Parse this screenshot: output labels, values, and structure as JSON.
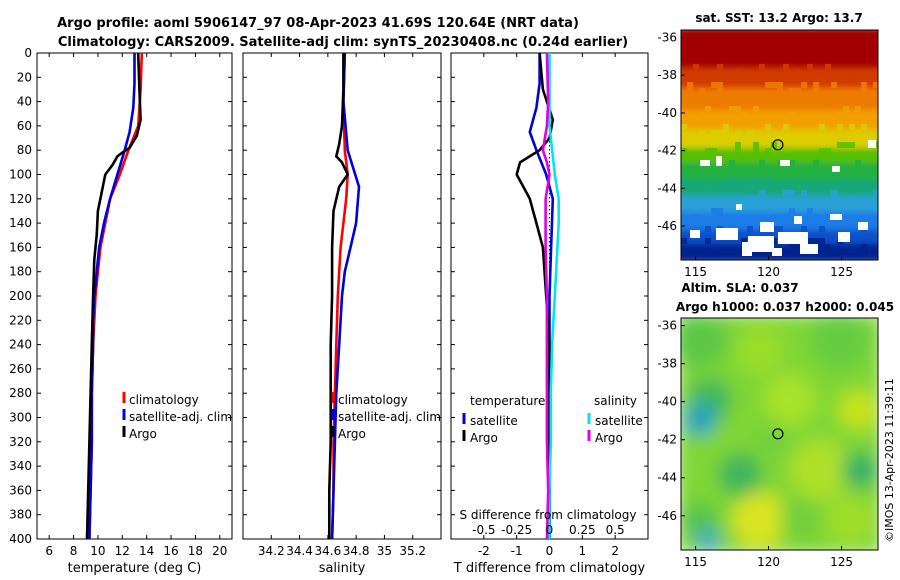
{
  "title": {
    "line1": "Argo profile: aoml 5906147_97 08-Apr-2023 41.69S 120.64E (NRT data)",
    "line2": "Climatology: CARS2009. Satellite-adj clim: synTS_20230408.nc (0.24d earlier)"
  },
  "watermark": "©IMOS 13-Apr-2023 11:39:11",
  "colors": {
    "climatology": "#ff0000",
    "satellite": "#0000dd",
    "argo": "#000000",
    "salinity_satellite": "#00e5ee",
    "salinity_diff": "#e000e0"
  },
  "chart_data": [
    {
      "type": "line",
      "name": "temperature-profile",
      "xlabel": "temperature (deg C)",
      "ylabel": "",
      "xlim": [
        5,
        21
      ],
      "ylim": [
        400,
        0
      ],
      "xticks": [
        6,
        8,
        10,
        12,
        14,
        16,
        18,
        20
      ],
      "yticks": [
        0,
        20,
        40,
        60,
        80,
        100,
        120,
        140,
        160,
        180,
        200,
        220,
        240,
        260,
        280,
        300,
        320,
        340,
        360,
        380,
        400
      ],
      "legend": [
        "climatology",
        "satellite-adj. clim",
        "Argo"
      ],
      "legend_position": "lower-right",
      "series": [
        {
          "name": "climatology",
          "color": "#ff0000",
          "points": [
            [
              13.6,
              0
            ],
            [
              13.5,
              30
            ],
            [
              13.3,
              60
            ],
            [
              12.5,
              80
            ],
            [
              11.8,
              100
            ],
            [
              11.0,
              120
            ],
            [
              10.6,
              140
            ],
            [
              10.2,
              160
            ],
            [
              10.0,
              180
            ],
            [
              9.8,
              200
            ],
            [
              9.7,
              220
            ],
            [
              9.6,
              240
            ],
            [
              9.5,
              280
            ],
            [
              9.5,
              320
            ],
            [
              9.4,
              360
            ],
            [
              9.3,
              400
            ]
          ]
        },
        {
          "name": "satellite-adj. clim",
          "color": "#0000dd",
          "points": [
            [
              13.0,
              0
            ],
            [
              13.0,
              25
            ],
            [
              12.9,
              45
            ],
            [
              12.6,
              65
            ],
            [
              12.2,
              80
            ],
            [
              11.6,
              100
            ],
            [
              11.0,
              120
            ],
            [
              10.5,
              140
            ],
            [
              10.1,
              160
            ],
            [
              9.9,
              180
            ],
            [
              9.7,
              200
            ],
            [
              9.6,
              220
            ],
            [
              9.6,
              240
            ],
            [
              9.5,
              280
            ],
            [
              9.5,
              320
            ],
            [
              9.4,
              360
            ],
            [
              9.3,
              400
            ]
          ]
        },
        {
          "name": "Argo",
          "color": "#000000",
          "points": [
            [
              13.3,
              0
            ],
            [
              13.4,
              30
            ],
            [
              13.5,
              55
            ],
            [
              13.2,
              68
            ],
            [
              12.6,
              78
            ],
            [
              12.0,
              82
            ],
            [
              11.6,
              85
            ],
            [
              11.2,
              92
            ],
            [
              10.6,
              100
            ],
            [
              10.3,
              115
            ],
            [
              10.0,
              130
            ],
            [
              9.9,
              150
            ],
            [
              9.7,
              170
            ],
            [
              9.6,
              200
            ],
            [
              9.5,
              240
            ],
            [
              9.4,
              280
            ],
            [
              9.3,
              320
            ],
            [
              9.2,
              360
            ],
            [
              9.1,
              400
            ]
          ]
        }
      ]
    },
    {
      "type": "line",
      "name": "salinity-profile",
      "xlabel": "salinity",
      "xlim": [
        34.0,
        35.4
      ],
      "ylim": [
        400,
        0
      ],
      "xticks": [
        34.2,
        34.4,
        34.6,
        34.8,
        35,
        35.2
      ],
      "xtick_labels": [
        "34.2",
        "34.4",
        "34.6",
        "34.8",
        "35",
        "35.2"
      ],
      "legend": [
        "climatology",
        "satellite-adj. clim",
        "Argo"
      ],
      "legend_position": "lower-right",
      "series": [
        {
          "name": "climatology",
          "color": "#ff0000",
          "points": [
            [
              34.72,
              0
            ],
            [
              34.71,
              40
            ],
            [
              34.72,
              80
            ],
            [
              34.74,
              100
            ],
            [
              34.73,
              120
            ],
            [
              34.71,
              140
            ],
            [
              34.69,
              160
            ],
            [
              34.67,
              200
            ],
            [
              34.66,
              240
            ],
            [
              34.65,
              280
            ],
            [
              34.64,
              320
            ],
            [
              34.64,
              360
            ],
            [
              34.63,
              400
            ]
          ]
        },
        {
          "name": "satellite-adj. clim",
          "color": "#0000dd",
          "points": [
            [
              34.72,
              0
            ],
            [
              34.71,
              40
            ],
            [
              34.74,
              80
            ],
            [
              34.82,
              110
            ],
            [
              34.8,
              140
            ],
            [
              34.76,
              160
            ],
            [
              34.72,
              180
            ],
            [
              34.7,
              200
            ],
            [
              34.68,
              240
            ],
            [
              34.66,
              280
            ],
            [
              34.65,
              320
            ],
            [
              34.64,
              360
            ],
            [
              34.63,
              400
            ]
          ]
        },
        {
          "name": "Argo",
          "color": "#000000",
          "points": [
            [
              34.71,
              0
            ],
            [
              34.71,
              30
            ],
            [
              34.7,
              60
            ],
            [
              34.68,
              75
            ],
            [
              34.66,
              85
            ],
            [
              34.7,
              90
            ],
            [
              34.74,
              100
            ],
            [
              34.68,
              110
            ],
            [
              34.64,
              130
            ],
            [
              34.63,
              160
            ],
            [
              34.63,
              200
            ],
            [
              34.62,
              240
            ],
            [
              34.62,
              280
            ],
            [
              34.62,
              320
            ],
            [
              34.61,
              360
            ],
            [
              34.61,
              400
            ]
          ]
        }
      ]
    },
    {
      "type": "line",
      "name": "difference-profile",
      "xlabel": "T difference from climatology",
      "x2label": "S difference from climatology",
      "xlim": [
        -3,
        3
      ],
      "ylim": [
        400,
        0
      ],
      "xticks": [
        -2,
        -1,
        0,
        1,
        2
      ],
      "xtick_labels": [
        "-2",
        "-1",
        "0",
        "1",
        "2"
      ],
      "x2ticks": [
        -0.5,
        -0.25,
        0,
        0.25,
        0.5
      ],
      "x2tick_labels": [
        "-0.5",
        "-0.25",
        "0",
        "0.25",
        "0.5"
      ],
      "x2scale": 4,
      "legend_t_title": "temperature",
      "legend_t": [
        "satellite",
        "Argo"
      ],
      "legend_s_title": "salinity",
      "legend_s": [
        "satellite",
        "Argo"
      ],
      "series": [
        {
          "name": "T satellite",
          "color": "#0000dd",
          "points": [
            [
              -0.3,
              0
            ],
            [
              -0.3,
              25
            ],
            [
              -0.4,
              45
            ],
            [
              -0.6,
              65
            ],
            [
              -0.4,
              80
            ],
            [
              -0.1,
              100
            ],
            [
              0.1,
              120
            ],
            [
              0.05,
              160
            ],
            [
              0.0,
              200
            ],
            [
              0.0,
              400
            ]
          ]
        },
        {
          "name": "T Argo",
          "color": "#000000",
          "points": [
            [
              -0.3,
              0
            ],
            [
              -0.2,
              30
            ],
            [
              0.1,
              55
            ],
            [
              0.0,
              70
            ],
            [
              -0.3,
              80
            ],
            [
              -0.9,
              90
            ],
            [
              -1.0,
              100
            ],
            [
              -0.6,
              120
            ],
            [
              -0.4,
              140
            ],
            [
              -0.2,
              160
            ],
            [
              -0.1,
              200
            ],
            [
              0.0,
              240
            ],
            [
              0.0,
              300
            ],
            [
              0.0,
              400
            ]
          ]
        },
        {
          "name": "S satellite",
          "color": "#00e5ee",
          "points": [
            [
              0.0,
              0
            ],
            [
              0.0,
              60
            ],
            [
              0.04,
              100
            ],
            [
              0.07,
              120
            ],
            [
              0.07,
              140
            ],
            [
              0.06,
              160
            ],
            [
              0.04,
              200
            ],
            [
              0.02,
              240
            ],
            [
              0.01,
              280
            ],
            [
              0.01,
              320
            ],
            [
              0.0,
              360
            ],
            [
              0.0,
              400
            ]
          ]
        },
        {
          "name": "S Argo",
          "color": "#e000e0",
          "points": [
            [
              -0.02,
              0
            ],
            [
              -0.01,
              40
            ],
            [
              -0.02,
              60
            ],
            [
              -0.05,
              80
            ],
            [
              -0.02,
              90
            ],
            [
              0.0,
              100
            ],
            [
              -0.03,
              120
            ],
            [
              -0.03,
              160
            ],
            [
              -0.02,
              200
            ],
            [
              -0.02,
              240
            ],
            [
              -0.02,
              280
            ],
            [
              -0.02,
              320
            ],
            [
              -0.01,
              360
            ],
            [
              -0.02,
              400
            ]
          ]
        }
      ]
    },
    {
      "type": "heatmap",
      "name": "sst-map",
      "title": "sat. SST: 13.2 Argo: 13.7",
      "xlim": [
        114,
        127.5
      ],
      "ylim": [
        -47.8,
        -35.6
      ],
      "xticks": [
        115,
        120,
        125
      ],
      "yticks": [
        -36,
        -38,
        -40,
        -42,
        -44,
        -46
      ],
      "marker": {
        "lon": 120.64,
        "lat": -41.69
      }
    },
    {
      "type": "heatmap",
      "name": "sla-map",
      "title": "Altim. SLA: 0.037",
      "subtitle": "Argo h1000: 0.037 h2000: 0.045",
      "xlim": [
        114,
        127.5
      ],
      "ylim": [
        -47.8,
        -35.6
      ],
      "xticks": [
        115,
        120,
        125
      ],
      "yticks": [
        -36,
        -38,
        -40,
        -42,
        -44,
        -46
      ],
      "marker": {
        "lon": 120.64,
        "lat": -41.69
      }
    }
  ]
}
